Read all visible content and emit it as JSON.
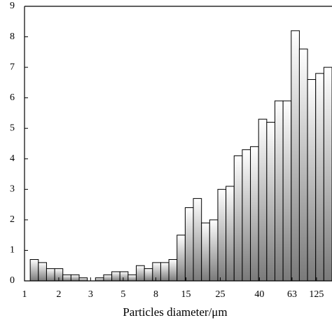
{
  "chart_data": {
    "type": "histogram",
    "x_label": "Particles diameter/μm",
    "bins": [
      0,
      1,
      2,
      3,
      4,
      5,
      6,
      7,
      8,
      9,
      10,
      11,
      12,
      13,
      14,
      15,
      16,
      17,
      18,
      19,
      20,
      21,
      22,
      23,
      24,
      25,
      26,
      27,
      28,
      29,
      30,
      31,
      32,
      33,
      34,
      35,
      36,
      37
    ],
    "values": [
      0.7,
      0.6,
      0.4,
      0.4,
      0.2,
      0.2,
      0.1,
      0.0,
      0.1,
      0.2,
      0.3,
      0.3,
      0.2,
      0.5,
      0.4,
      0.6,
      0.6,
      0.7,
      1.5,
      2.4,
      2.7,
      1.9,
      2.0,
      3.0,
      3.1,
      4.1,
      4.3,
      4.4,
      5.3,
      5.2,
      5.9,
      5.9,
      8.2,
      7.6,
      6.6,
      6.8,
      7.0
    ],
    "color": "#7a7a7a",
    "xlim": [
      -0.7,
      37
    ],
    "xticks": [
      {
        "value": -0.7,
        "label": "1"
      },
      {
        "value": 3.5,
        "label": "2"
      },
      {
        "value": 7.4,
        "label": "3"
      },
      {
        "value": 11.4,
        "label": "5"
      },
      {
        "value": 15.4,
        "label": "8"
      },
      {
        "value": 19.1,
        "label": "15"
      },
      {
        "value": 23.3,
        "label": "25"
      },
      {
        "value": 28.1,
        "label": "40"
      },
      {
        "value": 32.1,
        "label": "63"
      },
      {
        "value": 35.1,
        "label": "125"
      }
    ],
    "ylim": [
      0,
      9
    ],
    "yticks": [
      0,
      1,
      2,
      3,
      4,
      5,
      6,
      7,
      8,
      9
    ]
  }
}
